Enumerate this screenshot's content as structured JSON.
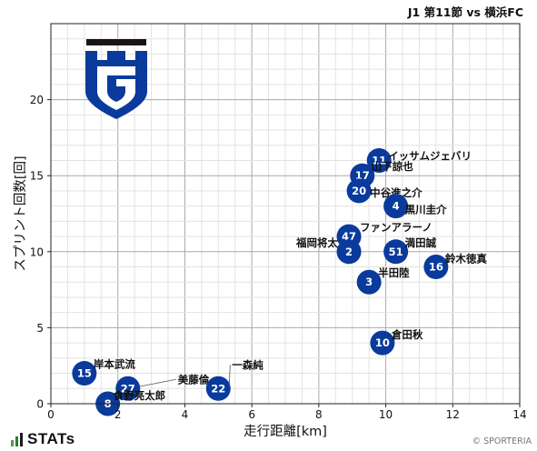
{
  "header": {
    "title": "J1 第11節 vs 横浜FC"
  },
  "footer": {
    "brand": "STATs",
    "credit": "© SPORTERIA"
  },
  "colors": {
    "marker": "#0a3a9c",
    "marker_text": "#ffffff",
    "grid": "#b8b8b8",
    "frame": "#222222"
  },
  "logo": {
    "icon": "gamba-osaka-crest-icon"
  },
  "chart_data": {
    "type": "scatter",
    "title": "J1 第11節 vs 横浜FC",
    "xlabel": "走行距離[km]",
    "ylabel": "スプリント回数[回]",
    "xlim": [
      0,
      14
    ],
    "ylim": [
      0,
      25
    ],
    "xticks": [
      0,
      2,
      4,
      6,
      8,
      10,
      12,
      14
    ],
    "yticks": [
      0,
      5,
      10,
      15,
      20
    ],
    "grid": true,
    "points": [
      {
        "number": "11",
        "name": "イッサムジェバリ",
        "x": 9.8,
        "y": 16
      },
      {
        "number": "17",
        "name": "山下諒也",
        "x": 9.3,
        "y": 15
      },
      {
        "number": "20",
        "name": "中谷進之介",
        "x": 9.2,
        "y": 14
      },
      {
        "number": "4",
        "name": "黒川圭介",
        "x": 10.3,
        "y": 13
      },
      {
        "number": "47",
        "name": "ファンアラーノ",
        "x": 8.9,
        "y": 11
      },
      {
        "number": "2",
        "name": "福岡将太",
        "x": 8.9,
        "y": 10
      },
      {
        "number": "51",
        "name": "満田誠",
        "x": 10.3,
        "y": 10
      },
      {
        "number": "16",
        "name": "鈴木徳真",
        "x": 11.5,
        "y": 9
      },
      {
        "number": "3",
        "name": "半田陸",
        "x": 9.5,
        "y": 8
      },
      {
        "number": "10",
        "name": "倉田秋",
        "x": 9.9,
        "y": 4
      },
      {
        "number": "15",
        "name": "岸本武流",
        "x": 1.0,
        "y": 2
      },
      {
        "number": "27",
        "name": "美藤倫",
        "x": 2.3,
        "y": 1
      },
      {
        "number": "22",
        "name": "一森純",
        "x": 5.0,
        "y": 1
      },
      {
        "number": "8",
        "name": "食野亮太郎",
        "x": 1.7,
        "y": 0
      }
    ]
  }
}
